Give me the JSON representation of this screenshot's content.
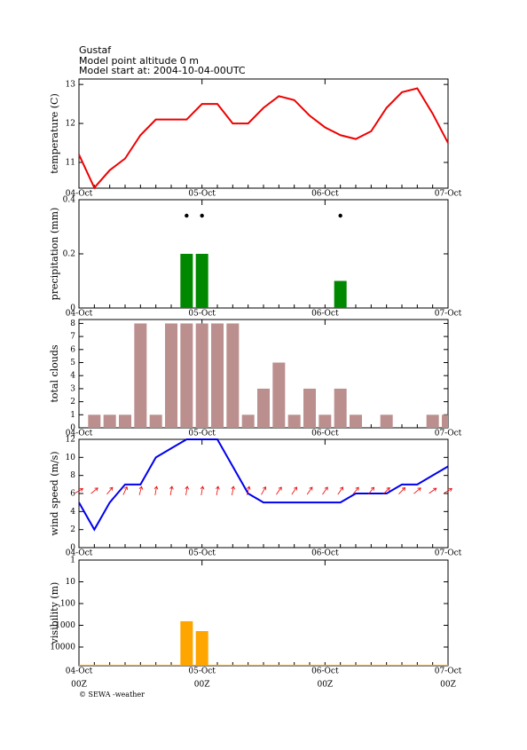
{
  "header": {
    "name": "Gustaf",
    "altitude": "Model point altitude  0 m",
    "start": "Model start at: 2004-10-04-00UTC"
  },
  "footer": "© SEWA -weather",
  "chart_data": [
    {
      "type": "line",
      "ylabel": "temperature (C)",
      "color": "#ee0000",
      "categories": [
        "04-Oct",
        null,
        null,
        null,
        null,
        null,
        null,
        null,
        "05-Oct",
        null,
        null,
        null,
        null,
        null,
        null,
        null,
        "06-Oct",
        null,
        null,
        null,
        null,
        null,
        null,
        null,
        "07-Oct"
      ],
      "values": [
        11.2,
        10.35,
        10.8,
        11.1,
        11.7,
        12.1,
        12.1,
        12.1,
        12.5,
        12.5,
        12.0,
        12.0,
        12.4,
        12.7,
        12.6,
        12.2,
        11.9,
        11.7,
        11.6,
        11.8,
        12.4,
        12.8,
        12.9,
        12.25,
        11.5
      ],
      "ylim": [
        10.34,
        13.14
      ],
      "yticks": [
        11,
        12,
        13
      ]
    },
    {
      "type": "bar",
      "ylabel": "precipitation (mm)",
      "color": "#008800",
      "categories": [
        "04-Oct",
        null,
        null,
        null,
        null,
        null,
        null,
        null,
        "05-Oct",
        null,
        null,
        null,
        null,
        null,
        null,
        null,
        "06-Oct",
        null,
        null,
        null,
        null,
        null,
        null,
        null,
        "07-Oct"
      ],
      "values": [
        0,
        0,
        0,
        0,
        0,
        0,
        0,
        0.2,
        0.2,
        0,
        0,
        0,
        0,
        0,
        0,
        0,
        0,
        0.1,
        0,
        0,
        0,
        0,
        0,
        0,
        0
      ],
      "ylim": [
        0,
        0.4
      ],
      "yticks": [
        0,
        0.2,
        0.4
      ],
      "dots": true
    },
    {
      "type": "bar",
      "ylabel": "total clouds",
      "color": "#bc8f8f",
      "categories": [
        "04-Oct",
        null,
        null,
        null,
        null,
        null,
        null,
        null,
        "05-Oct",
        null,
        null,
        null,
        null,
        null,
        null,
        null,
        "06-Oct",
        null,
        null,
        null,
        null,
        null,
        null,
        null,
        "07-Oct"
      ],
      "values": [
        0,
        1,
        1,
        1,
        8,
        1,
        8,
        8,
        8,
        8,
        8,
        1,
        3,
        5,
        1,
        3,
        1,
        3,
        1,
        0,
        1,
        0,
        0,
        1,
        1
      ],
      "ylim": [
        0,
        8.3
      ],
      "yticks": [
        0,
        1,
        2,
        3,
        4,
        5,
        6,
        7,
        8
      ]
    },
    {
      "type": "line",
      "ylabel": "wind speed (m/s)",
      "color": "#0000ee",
      "arrow_color": "#ee0000",
      "categories": [
        "04-Oct",
        null,
        null,
        null,
        null,
        null,
        null,
        null,
        "05-Oct",
        null,
        null,
        null,
        null,
        null,
        null,
        null,
        "06-Oct",
        null,
        null,
        null,
        null,
        null,
        null,
        null,
        "07-Oct"
      ],
      "values": [
        5,
        2,
        5,
        7,
        7,
        10,
        11,
        12,
        12,
        12,
        9,
        6,
        5,
        5,
        5,
        5,
        5,
        5,
        6,
        6,
        6,
        7,
        7,
        8,
        9
      ],
      "direction": [
        60,
        50,
        40,
        25,
        15,
        10,
        10,
        10,
        10,
        10,
        10,
        15,
        30,
        35,
        35,
        35,
        35,
        35,
        40,
        40,
        45,
        45,
        50,
        55,
        60
      ],
      "ylim": [
        0,
        12
      ],
      "yticks": [
        0,
        2,
        4,
        6,
        8,
        10,
        12
      ]
    },
    {
      "type": "bar",
      "ylabel": "visibility (m)",
      "color": "#ffa500",
      "log_scale": true,
      "inverted": true,
      "categories": [
        "04-Oct",
        null,
        null,
        null,
        null,
        null,
        null,
        null,
        "05-Oct",
        null,
        null,
        null,
        null,
        null,
        null,
        null,
        "06-Oct",
        null,
        null,
        null,
        null,
        null,
        null,
        null,
        "07-Oct"
      ],
      "category_sublabels": [
        "00Z",
        null,
        null,
        null,
        null,
        null,
        null,
        null,
        "00Z",
        null,
        null,
        null,
        null,
        null,
        null,
        null,
        "00Z",
        null,
        null,
        null,
        null,
        null,
        null,
        null,
        "00Z"
      ],
      "values": [
        72000,
        72000,
        72000,
        72000,
        72000,
        72000,
        72000,
        650,
        1850,
        72000,
        72000,
        72000,
        72000,
        72000,
        72000,
        72000,
        72000,
        72000,
        72000,
        72000,
        72000,
        72000,
        72000,
        72000,
        72000
      ],
      "ylim": [
        1,
        72000
      ],
      "yticks": [
        1,
        10,
        100,
        1000,
        10000
      ]
    }
  ]
}
